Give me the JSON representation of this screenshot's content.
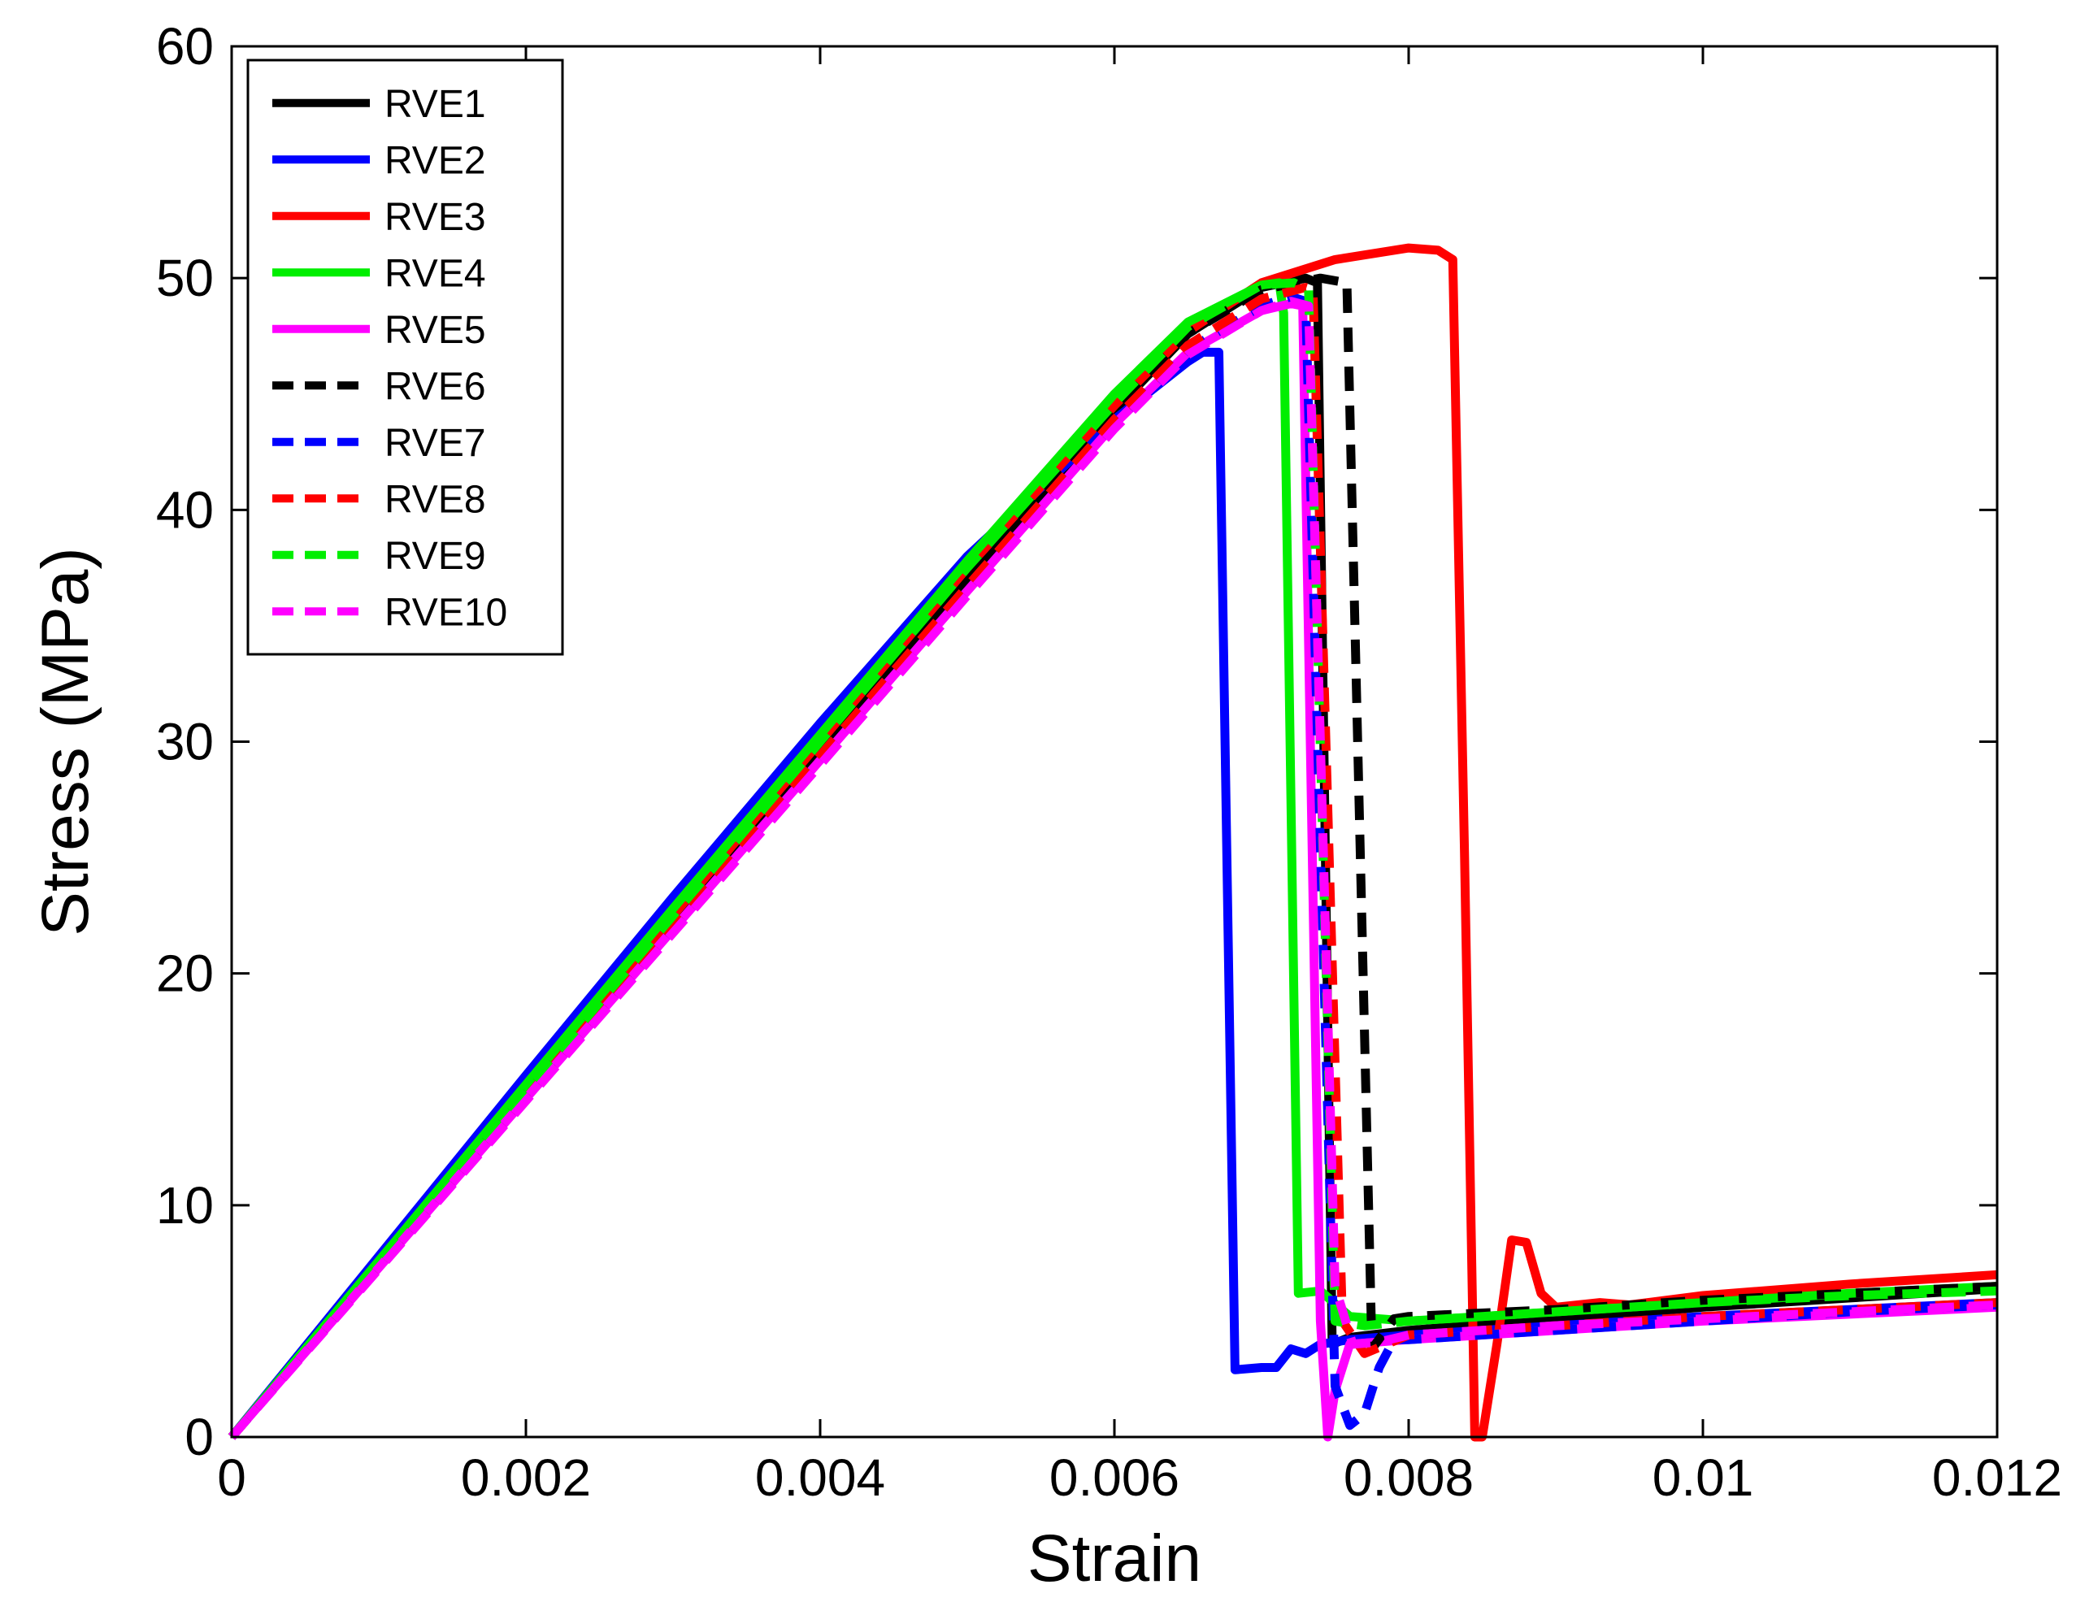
{
  "chart_data": {
    "type": "line",
    "title": "",
    "xlabel": "Strain",
    "ylabel": "Stress (MPa)",
    "xlim": [
      0,
      0.012
    ],
    "ylim": [
      0,
      60
    ],
    "x_ticks": [
      0,
      0.002,
      0.004,
      0.006,
      0.008,
      0.01,
      0.012
    ],
    "x_tick_labels": [
      "0",
      "0.002",
      "0.004",
      "0.006",
      "0.008",
      "0.01",
      "0.012"
    ],
    "y_ticks": [
      0,
      10,
      20,
      30,
      40,
      50,
      60
    ],
    "y_tick_labels": [
      "0",
      "10",
      "20",
      "30",
      "40",
      "50",
      "60"
    ],
    "grid": false,
    "legend_position": "top-left",
    "series": [
      {
        "name": "RVE1",
        "color": "#000000",
        "dash": "solid",
        "points": [
          [
            0,
            0
          ],
          [
            0.001,
            7.4
          ],
          [
            0.002,
            14.8
          ],
          [
            0.003,
            22.2
          ],
          [
            0.004,
            29.6
          ],
          [
            0.005,
            37
          ],
          [
            0.006,
            44.3
          ],
          [
            0.0065,
            47.6
          ],
          [
            0.007,
            49.6
          ],
          [
            0.0073,
            50.0
          ],
          [
            0.00738,
            49.8
          ],
          [
            0.00748,
            4
          ],
          [
            0.0076,
            4.3
          ],
          [
            0.008,
            4.6
          ],
          [
            0.009,
            5.1
          ],
          [
            0.01,
            5.6
          ],
          [
            0.011,
            6.0
          ],
          [
            0.012,
            6.4
          ]
        ]
      },
      {
        "name": "RVE2",
        "color": "#0000ff",
        "dash": "solid",
        "points": [
          [
            0,
            0
          ],
          [
            0.001,
            7.8
          ],
          [
            0.002,
            15.6
          ],
          [
            0.003,
            23.3
          ],
          [
            0.004,
            30.8
          ],
          [
            0.005,
            38
          ],
          [
            0.006,
            43.9
          ],
          [
            0.0065,
            46.4
          ],
          [
            0.0066,
            46.8
          ],
          [
            0.00671,
            46.8
          ],
          [
            0.00682,
            2.9
          ],
          [
            0.007,
            3.0
          ],
          [
            0.0071,
            3.0
          ],
          [
            0.0072,
            3.8
          ],
          [
            0.0073,
            3.6
          ],
          [
            0.0074,
            4.0
          ],
          [
            0.0076,
            4.2
          ],
          [
            0.008,
            4.4
          ],
          [
            0.009,
            4.8
          ],
          [
            0.01,
            5.2
          ],
          [
            0.011,
            5.5
          ],
          [
            0.012,
            5.8
          ]
        ]
      },
      {
        "name": "RVE3",
        "color": "#ff0000",
        "dash": "solid",
        "points": [
          [
            0,
            0
          ],
          [
            0.001,
            7.5
          ],
          [
            0.002,
            15
          ],
          [
            0.003,
            22.5
          ],
          [
            0.004,
            30
          ],
          [
            0.005,
            37.5
          ],
          [
            0.006,
            44.5
          ],
          [
            0.0065,
            47.7
          ],
          [
            0.007,
            49.8
          ],
          [
            0.0075,
            50.8
          ],
          [
            0.008,
            51.3
          ],
          [
            0.0082,
            51.2
          ],
          [
            0.0083,
            50.8
          ],
          [
            0.00838,
            25
          ],
          [
            0.00845,
            0
          ],
          [
            0.0085,
            0
          ],
          [
            0.0086,
            4
          ],
          [
            0.0087,
            8.5
          ],
          [
            0.0088,
            8.4
          ],
          [
            0.0089,
            6.2
          ],
          [
            0.009,
            5.6
          ],
          [
            0.0093,
            5.8
          ],
          [
            0.0095,
            5.7
          ],
          [
            0.01,
            6.1
          ],
          [
            0.011,
            6.6
          ],
          [
            0.012,
            7.0
          ]
        ]
      },
      {
        "name": "RVE4",
        "color": "#00ee00",
        "dash": "solid",
        "points": [
          [
            0,
            0
          ],
          [
            0.001,
            7.6
          ],
          [
            0.002,
            15.2
          ],
          [
            0.003,
            22.8
          ],
          [
            0.004,
            30.3
          ],
          [
            0.005,
            37.8
          ],
          [
            0.006,
            45
          ],
          [
            0.0065,
            48.1
          ],
          [
            0.007,
            49.7
          ],
          [
            0.00712,
            49.8
          ],
          [
            0.00715,
            48.5
          ],
          [
            0.00725,
            6.2
          ],
          [
            0.0074,
            6.3
          ],
          [
            0.0076,
            5.2
          ],
          [
            0.008,
            5.0
          ],
          [
            0.009,
            5.4
          ],
          [
            0.01,
            5.8
          ],
          [
            0.011,
            6.2
          ],
          [
            0.012,
            6.5
          ]
        ]
      },
      {
        "name": "RVE5",
        "color": "#ff00ff",
        "dash": "solid",
        "points": [
          [
            0,
            0
          ],
          [
            0.001,
            7.3
          ],
          [
            0.002,
            14.6
          ],
          [
            0.003,
            21.9
          ],
          [
            0.004,
            29.2
          ],
          [
            0.005,
            36.5
          ],
          [
            0.006,
            43.7
          ],
          [
            0.0065,
            46.8
          ],
          [
            0.007,
            48.6
          ],
          [
            0.0072,
            48.9
          ],
          [
            0.00728,
            48.8
          ],
          [
            0.0074,
            5
          ],
          [
            0.00745,
            0
          ],
          [
            0.0075,
            2
          ],
          [
            0.0076,
            4
          ],
          [
            0.008,
            4.2
          ],
          [
            0.009,
            4.6
          ],
          [
            0.01,
            5.0
          ],
          [
            0.011,
            5.3
          ],
          [
            0.012,
            5.6
          ]
        ]
      },
      {
        "name": "RVE6",
        "color": "#000000",
        "dash": "dashed",
        "points": [
          [
            0,
            0
          ],
          [
            0.001,
            7.4
          ],
          [
            0.002,
            14.8
          ],
          [
            0.003,
            22.2
          ],
          [
            0.004,
            29.6
          ],
          [
            0.005,
            37
          ],
          [
            0.006,
            44.3
          ],
          [
            0.0065,
            47.6
          ],
          [
            0.007,
            49.5
          ],
          [
            0.0074,
            50.0
          ],
          [
            0.00758,
            49.8
          ],
          [
            0.00775,
            3.8
          ],
          [
            0.0079,
            5.1
          ],
          [
            0.008,
            5.2
          ],
          [
            0.009,
            5.5
          ],
          [
            0.01,
            5.9
          ],
          [
            0.011,
            6.2
          ],
          [
            0.012,
            6.5
          ]
        ]
      },
      {
        "name": "RVE7",
        "color": "#0000ff",
        "dash": "dashed",
        "points": [
          [
            0,
            0
          ],
          [
            0.001,
            7.3
          ],
          [
            0.002,
            14.6
          ],
          [
            0.003,
            21.9
          ],
          [
            0.004,
            29.2
          ],
          [
            0.005,
            36.5
          ],
          [
            0.006,
            43.7
          ],
          [
            0.0065,
            46.9
          ],
          [
            0.007,
            48.8
          ],
          [
            0.0072,
            49.2
          ],
          [
            0.0073,
            49.0
          ],
          [
            0.0075,
            2.2
          ],
          [
            0.0076,
            0.5
          ],
          [
            0.0077,
            1.0
          ],
          [
            0.0078,
            3.0
          ],
          [
            0.0079,
            4.2
          ],
          [
            0.008,
            4.2
          ],
          [
            0.009,
            4.6
          ],
          [
            0.01,
            5.0
          ],
          [
            0.011,
            5.4
          ],
          [
            0.012,
            5.7
          ]
        ]
      },
      {
        "name": "RVE8",
        "color": "#ff0000",
        "dash": "dashed",
        "points": [
          [
            0,
            0
          ],
          [
            0.001,
            7.35
          ],
          [
            0.002,
            14.7
          ],
          [
            0.003,
            22.05
          ],
          [
            0.004,
            29.4
          ],
          [
            0.005,
            36.7
          ],
          [
            0.006,
            43.9
          ],
          [
            0.0065,
            47.1
          ],
          [
            0.007,
            49.1
          ],
          [
            0.0073,
            49.6
          ],
          [
            0.00735,
            49.5
          ],
          [
            0.00755,
            5
          ],
          [
            0.0077,
            3.6
          ],
          [
            0.008,
            4.4
          ],
          [
            0.009,
            4.8
          ],
          [
            0.01,
            5.2
          ],
          [
            0.011,
            5.5
          ],
          [
            0.012,
            5.8
          ]
        ]
      },
      {
        "name": "RVE9",
        "color": "#00ee00",
        "dash": "dashed",
        "points": [
          [
            0,
            0
          ],
          [
            0.001,
            7.5
          ],
          [
            0.002,
            15
          ],
          [
            0.003,
            22.5
          ],
          [
            0.004,
            30
          ],
          [
            0.005,
            37.5
          ],
          [
            0.006,
            44.6
          ],
          [
            0.0065,
            47.9
          ],
          [
            0.007,
            49.7
          ],
          [
            0.00722,
            49.8
          ],
          [
            0.00732,
            49.5
          ],
          [
            0.0075,
            5
          ],
          [
            0.0077,
            4.8
          ],
          [
            0.008,
            5.0
          ],
          [
            0.009,
            5.4
          ],
          [
            0.01,
            5.8
          ],
          [
            0.011,
            6.1
          ],
          [
            0.012,
            6.3
          ]
        ]
      },
      {
        "name": "RVE10",
        "color": "#ff00ff",
        "dash": "dashed",
        "points": [
          [
            0,
            0
          ],
          [
            0.001,
            7.25
          ],
          [
            0.002,
            14.5
          ],
          [
            0.003,
            21.75
          ],
          [
            0.004,
            29
          ],
          [
            0.005,
            36.3
          ],
          [
            0.006,
            43.5
          ],
          [
            0.0065,
            46.7
          ],
          [
            0.007,
            48.6
          ],
          [
            0.0072,
            49.0
          ],
          [
            0.00732,
            48.8
          ],
          [
            0.0075,
            6.5
          ],
          [
            0.00762,
            4.0
          ],
          [
            0.0078,
            4.1
          ],
          [
            0.008,
            4.4
          ],
          [
            0.009,
            4.8
          ],
          [
            0.01,
            5.1
          ],
          [
            0.011,
            5.4
          ],
          [
            0.012,
            5.7
          ]
        ]
      }
    ]
  }
}
